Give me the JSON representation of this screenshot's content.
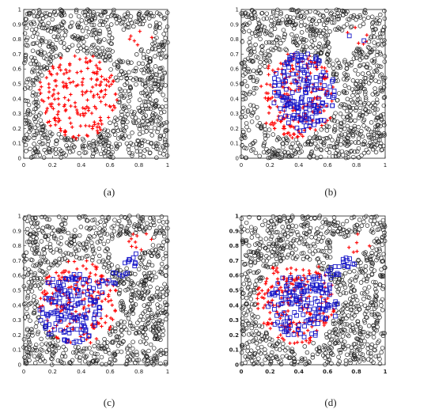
{
  "panels": [
    {
      "caption": "(a)",
      "has_blue": false,
      "bold_ticks": false,
      "red_shape": "main-blob",
      "blue_shape": null
    },
    {
      "caption": "(b)",
      "has_blue": true,
      "bold_ticks": false,
      "red_shape": "main-blob",
      "blue_shape": "overlap-red"
    },
    {
      "caption": "(c)",
      "has_blue": true,
      "bold_ticks": false,
      "red_shape": "main-blob",
      "blue_shape": "shifted-left-with-arm"
    },
    {
      "caption": "(d)",
      "has_blue": true,
      "bold_ticks": true,
      "red_shape": "main-blob",
      "blue_shape": "centered-with-arm"
    }
  ],
  "chart_data": {
    "type": "scatter",
    "xlim": [
      0,
      1
    ],
    "ylim": [
      0,
      1
    ],
    "xticks": [
      "0",
      "0.2",
      "0.4",
      "0.6",
      "0.8",
      "1"
    ],
    "yticks": [
      "0",
      "0.1",
      "0.2",
      "0.3",
      "0.4",
      "0.5",
      "0.6",
      "0.7",
      "0.8",
      "0.9",
      "1"
    ],
    "grid": false,
    "series": [
      {
        "marker": "circle",
        "color": "#222222",
        "region": "outside-blob",
        "approx_count": 900
      },
      {
        "marker": "plus",
        "color": "#ff0000",
        "region": "blob-center-0.38-0.43-radius-0.28-plus-upper-right-cluster-0.82-0.84",
        "approx_count": 200
      },
      {
        "marker": "square",
        "color": "#0000cc",
        "region": "varies-per-panel",
        "approx_count": 180
      }
    ]
  },
  "colors": {
    "circle": "#222222",
    "red": "#ff0000",
    "blue": "#1515c8",
    "axis": "#222222"
  }
}
